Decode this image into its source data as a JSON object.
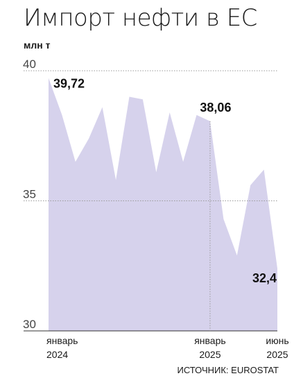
{
  "header": {
    "title": "Импорт нефти в ЕС",
    "unit": "млн т"
  },
  "footer": {
    "source": "ИСТОЧНИК: EUROSTAT"
  },
  "colors": {
    "area_fill": "#d6d2ec",
    "grid": "#9a9a9a",
    "axis": "#333333"
  },
  "chart_data": {
    "type": "area",
    "title": "Импорт нефти в ЕС",
    "ylabel": "млн т",
    "xlabel": "",
    "ylim": [
      30,
      40
    ],
    "yticks": [
      30,
      35,
      40
    ],
    "grid": true,
    "x": [
      "2024-01",
      "2024-02",
      "2024-03",
      "2024-04",
      "2024-05",
      "2024-06",
      "2024-07",
      "2024-08",
      "2024-09",
      "2024-10",
      "2024-11",
      "2024-12",
      "2025-01",
      "2025-02",
      "2025-03",
      "2025-04",
      "2025-05",
      "2025-06"
    ],
    "values": [
      39.72,
      38.3,
      36.5,
      37.4,
      38.6,
      35.8,
      39.0,
      38.9,
      36.1,
      38.4,
      36.5,
      38.3,
      38.06,
      34.3,
      32.9,
      35.6,
      36.2,
      32.4
    ],
    "x_tick_labels": [
      {
        "index": 0,
        "line1": "январь",
        "line2": "2024"
      },
      {
        "index": 12,
        "line1": "январь",
        "line2": "2025"
      },
      {
        "index": 17,
        "line1": "июнь",
        "line2": "2025"
      }
    ],
    "annotations": [
      {
        "index": 0,
        "text": "39,72"
      },
      {
        "index": 12,
        "text": "38,06"
      },
      {
        "index": 17,
        "text": "32,4"
      }
    ]
  }
}
